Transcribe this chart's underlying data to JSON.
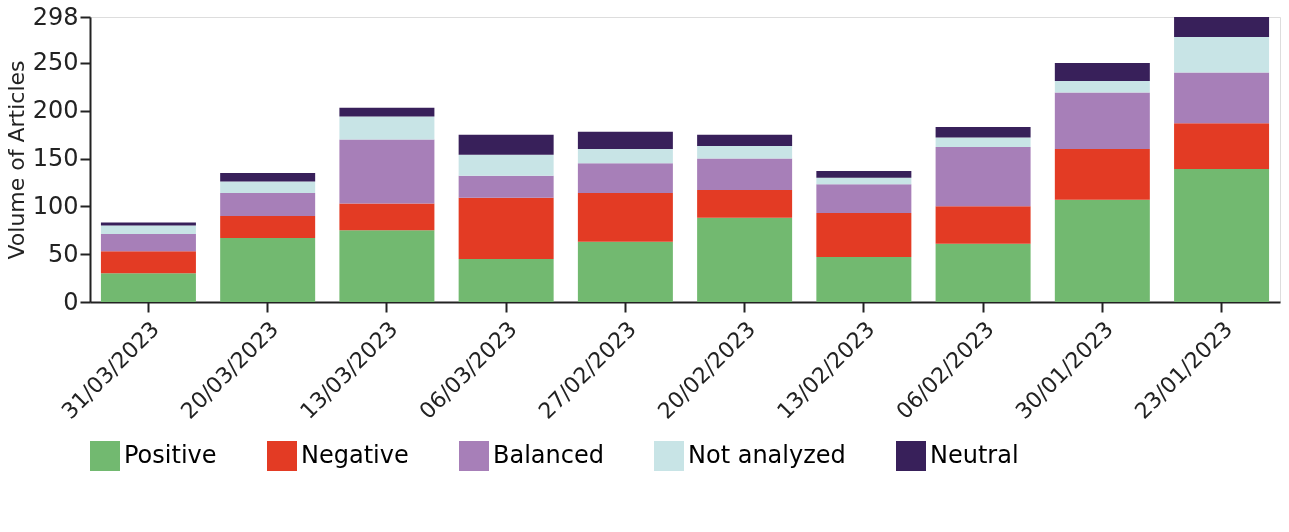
{
  "chart_data": {
    "type": "bar",
    "stacked": true,
    "ylabel": "Volume of Articles",
    "categories": [
      "31/03/2023",
      "20/03/2023",
      "13/03/2023",
      "06/03/2023",
      "27/02/2023",
      "20/02/2023",
      "13/02/2023",
      "06/02/2023",
      "30/01/2023",
      "23/01/2023"
    ],
    "series": [
      {
        "name": "Positive",
        "color": "#72b970",
        "values": [
          30,
          67,
          75,
          45,
          63,
          88,
          47,
          61,
          107,
          139
        ]
      },
      {
        "name": "Negative",
        "color": "#e33b24",
        "values": [
          23,
          23,
          28,
          64,
          51,
          29,
          46,
          39,
          53,
          48
        ]
      },
      {
        "name": "Balanced",
        "color": "#a77fb8",
        "values": [
          18,
          24,
          67,
          23,
          31,
          33,
          30,
          62,
          59,
          53
        ]
      },
      {
        "name": "Not analyzed",
        "color": "#c8e4e6",
        "values": [
          9,
          12,
          24,
          22,
          15,
          13,
          7,
          10,
          12,
          37
        ]
      },
      {
        "name": "Neutral",
        "color": "#38205a",
        "values": [
          3,
          9,
          9,
          21,
          18,
          12,
          7,
          11,
          19,
          21
        ]
      }
    ],
    "ylim": [
      0,
      298
    ],
    "yticks": [
      0,
      50,
      100,
      150,
      200,
      250,
      298
    ],
    "grid": false,
    "legend": "bottom"
  }
}
